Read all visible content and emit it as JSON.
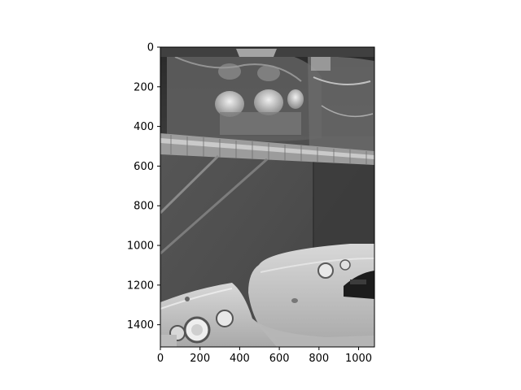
{
  "chart_data": {
    "type": "image",
    "title": "",
    "xlabel": "",
    "ylabel": "",
    "image_width": 1080,
    "image_height": 1512,
    "xlim": [
      0,
      1080
    ],
    "ylim": [
      1512,
      0
    ],
    "xticks": [
      0,
      200,
      400,
      600,
      800,
      1000
    ],
    "yticks": [
      0,
      200,
      400,
      600,
      800,
      1000,
      1200,
      1400
    ],
    "colormap": "gray",
    "image_content": "grayscale photo of a laundry area: wire shelf holding plastic-bagged bottles above a washer and dryer control panel"
  }
}
